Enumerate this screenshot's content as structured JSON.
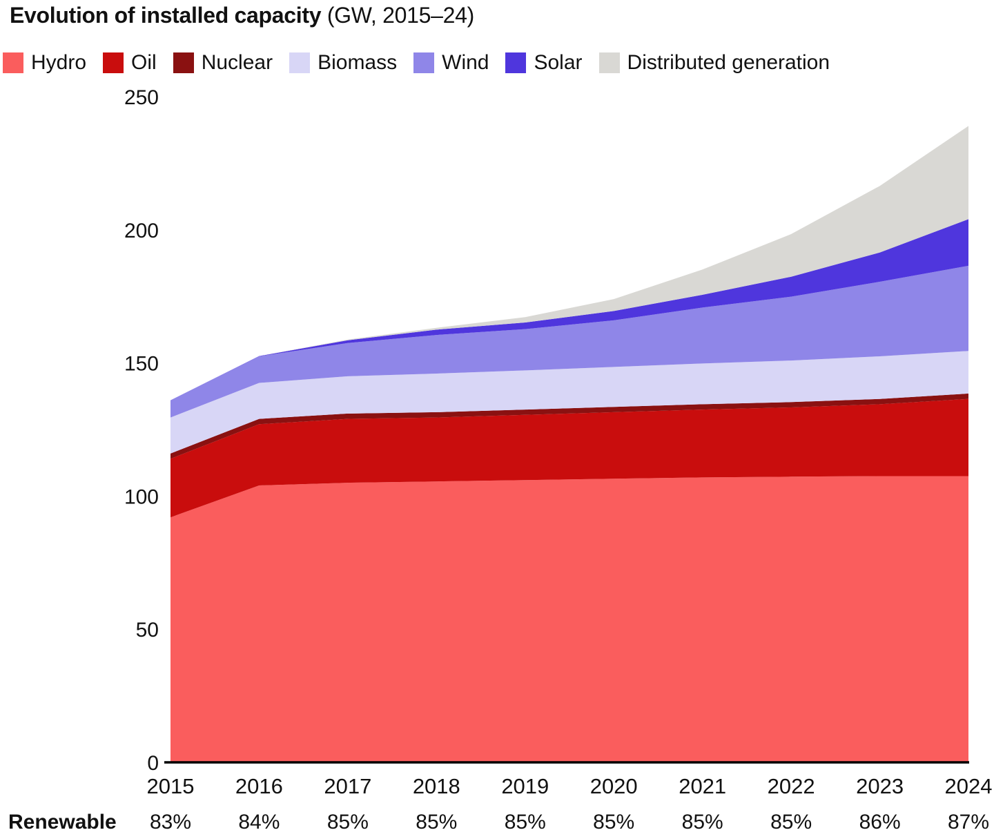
{
  "title": {
    "main": "Evolution of installed capacity",
    "subtitle": " (GW, 2015–24)"
  },
  "chart_data": {
    "type": "area",
    "stacked": true,
    "title": "Evolution of installed capacity (GW, 2015–24)",
    "x": [
      2015,
      2016,
      2017,
      2018,
      2019,
      2020,
      2021,
      2022,
      2023,
      2024
    ],
    "series": [
      {
        "name": "Hydro",
        "color": "#FA5D5D",
        "values": [
          92,
          104,
          105,
          105.5,
          106,
          106.5,
          107,
          107.3,
          107.5,
          107.5
        ]
      },
      {
        "name": "Oil",
        "color": "#C90D0D",
        "values": [
          22,
          23,
          24,
          24,
          24.5,
          25,
          25.5,
          26,
          27,
          29
        ]
      },
      {
        "name": "Nuclear",
        "color": "#8A1111",
        "values": [
          2,
          2,
          2,
          2,
          2,
          2,
          2,
          2,
          2,
          2
        ]
      },
      {
        "name": "Biomass",
        "color": "#D8D6F6",
        "values": [
          13.5,
          13.5,
          14,
          14.5,
          14.7,
          15,
          15.3,
          15.6,
          16,
          16
        ]
      },
      {
        "name": "Wind",
        "color": "#8F86E8",
        "values": [
          6.5,
          10,
          12.5,
          14.5,
          15.5,
          17.5,
          21,
          24,
          28,
          32
        ]
      },
      {
        "name": "Solar",
        "color": "#4F36DD",
        "values": [
          0,
          0.1,
          1,
          2,
          2.5,
          3.5,
          4.8,
          7.5,
          11,
          17.5
        ]
      },
      {
        "name": "Distributed generation",
        "color": "#D9D8D4",
        "values": [
          0,
          0,
          0.3,
          0.7,
          2,
          4.5,
          9.5,
          16,
          25,
          35
        ]
      }
    ],
    "xlabel": "",
    "ylabel": "",
    "ylim": [
      0,
      250
    ],
    "yticks": [
      0,
      50,
      100,
      150,
      200,
      250
    ],
    "grid": false,
    "legend_position": "top"
  },
  "footer": {
    "label": "Renewable",
    "values": [
      "83%",
      "84%",
      "85%",
      "85%",
      "85%",
      "85%",
      "85%",
      "85%",
      "86%",
      "87%"
    ]
  }
}
